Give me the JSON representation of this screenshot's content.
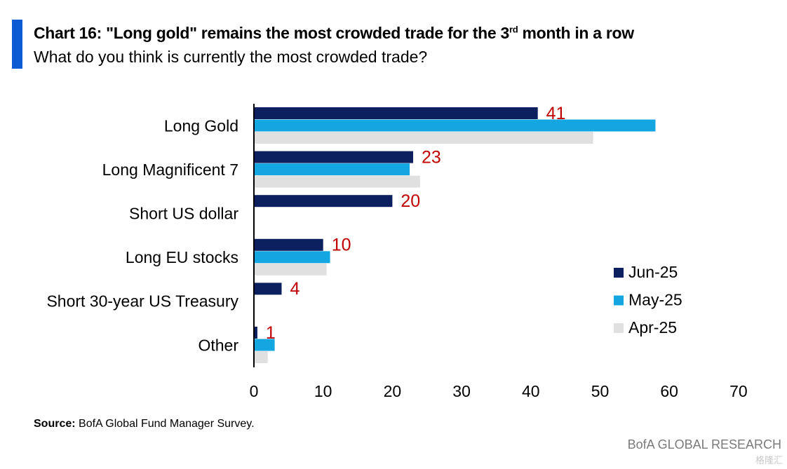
{
  "header": {
    "title_main": "Chart 16: \"Long gold\" remains the most crowded trade for the 3",
    "title_sup": "rd",
    "title_end": " month in a row",
    "subtitle": "What do you think is currently the most crowded trade?"
  },
  "footer": {
    "source_label": "Source:",
    "source_text": " BofA Global Fund Manager Survey.",
    "brand": "BofA GLOBAL RESEARCH",
    "watermark": "格隆汇"
  },
  "colors": {
    "accent": "#0a5ad4",
    "jun": "#0c1f5f",
    "may": "#13a6e0",
    "apr": "#e0e0e0",
    "label_red": "#c00000"
  },
  "chart_data": {
    "type": "bar",
    "orientation": "horizontal",
    "title": "Chart 16: \"Long gold\" remains the most crowded trade for the 3rd month in a row",
    "subtitle": "What do you think is currently the most crowded trade?",
    "categories": [
      "Long Gold",
      "Long Magnificent 7",
      "Short US dollar",
      "Long EU stocks",
      "Short 30-year US Treasury",
      "Other"
    ],
    "series": [
      {
        "name": "Jun-25",
        "values": [
          41,
          23,
          20,
          10,
          4,
          0.5
        ]
      },
      {
        "name": "May-25",
        "values": [
          58,
          22.5,
          null,
          11,
          null,
          3
        ]
      },
      {
        "name": "Apr-25",
        "values": [
          49,
          24,
          null,
          10.5,
          null,
          2
        ]
      }
    ],
    "data_labels": [
      "41",
      "23",
      "20",
      "10",
      "4",
      "1"
    ],
    "xlim": [
      0,
      70
    ],
    "xticks": [
      0,
      10,
      20,
      30,
      40,
      50,
      60,
      70
    ],
    "xlabel": "",
    "ylabel": "",
    "legend": {
      "placement": "right",
      "entries": [
        "Jun-25",
        "May-25",
        "Apr-25"
      ]
    },
    "grid": false
  }
}
